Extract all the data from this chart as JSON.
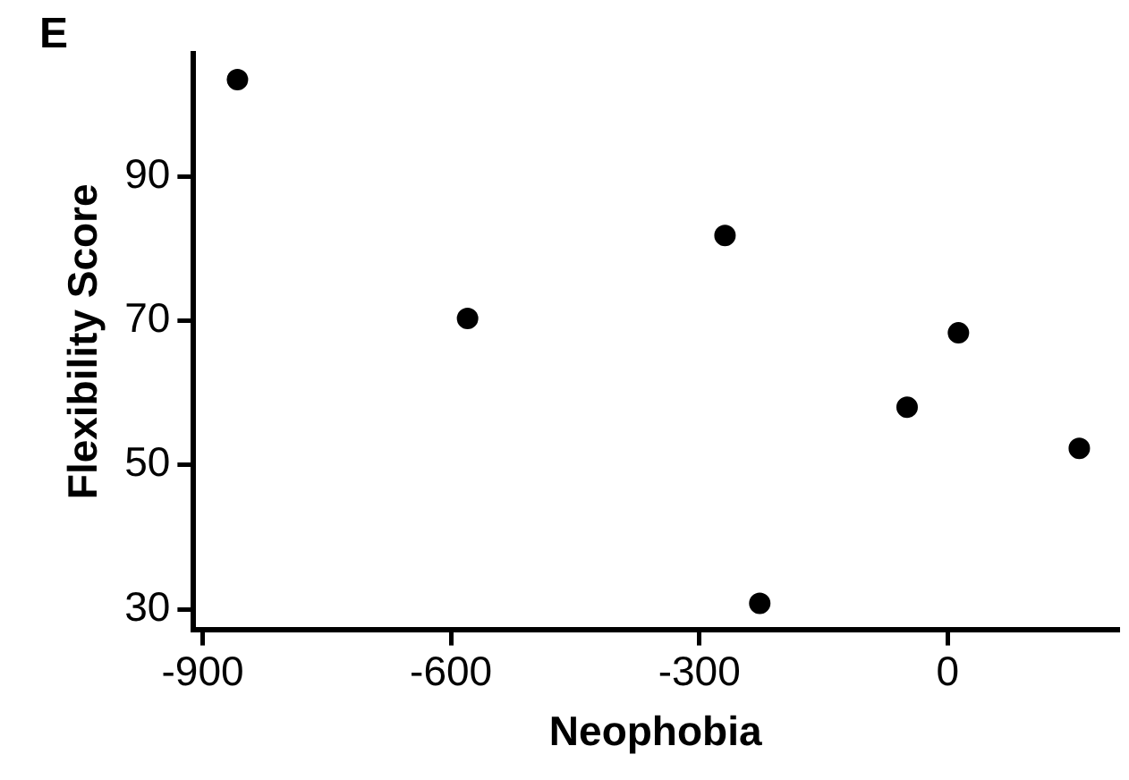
{
  "chart_data": {
    "type": "scatter",
    "xlabel": "Neophobia",
    "ylabel": "Flexibility Score",
    "annotations": [
      "E"
    ],
    "x": [
      -858,
      -580,
      -269,
      -227,
      -49,
      13,
      159
    ],
    "values": [
      103.4,
      70.3,
      81.8,
      30.8,
      58,
      68.3,
      52.3
    ],
    "color": "#000000",
    "marker": "circle",
    "xlim": [
      -911,
      205
    ],
    "xticks": [
      -900,
      -600,
      -300,
      0
    ],
    "ylim": [
      27.2,
      107
    ],
    "yticks": [
      30,
      50,
      70,
      90
    ],
    "grid": false,
    "legend": false
  }
}
